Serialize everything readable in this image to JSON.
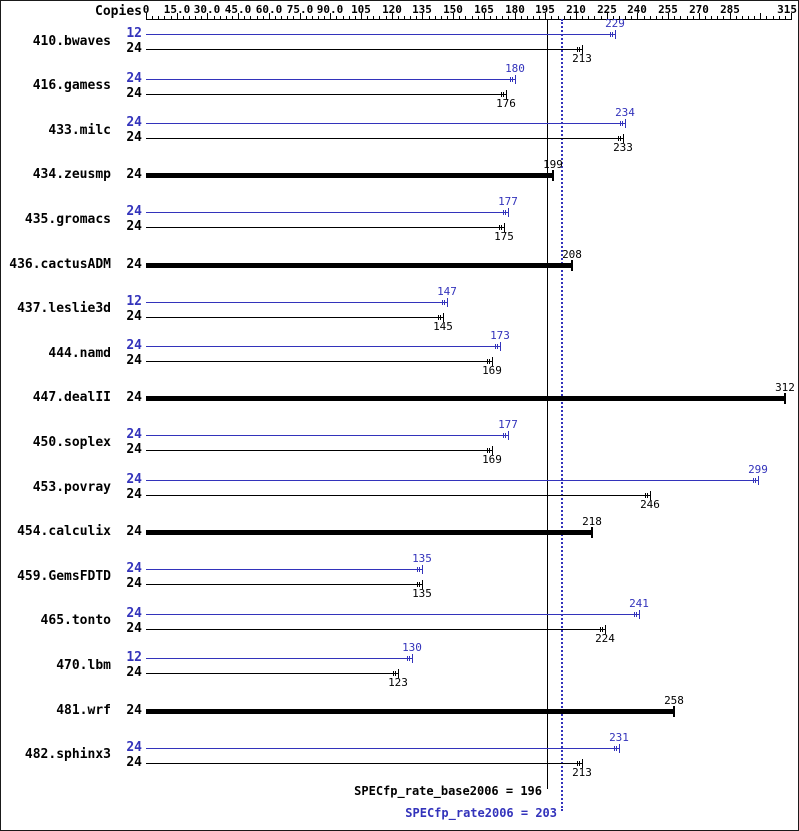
{
  "chart_data": {
    "type": "bar",
    "orientation": "horizontal",
    "copies_header": "Copies",
    "axis": {
      "max": 315,
      "minor_step": 3,
      "major_step": 15,
      "ticks": [
        {
          "value": 0,
          "text": "0"
        },
        {
          "value": 15,
          "text": "15.0"
        },
        {
          "value": 30,
          "text": "30.0"
        },
        {
          "value": 45,
          "text": "45.0"
        },
        {
          "value": 60,
          "text": "60.0"
        },
        {
          "value": 75,
          "text": "75.0"
        },
        {
          "value": 90,
          "text": "90.0"
        },
        {
          "value": 105,
          "text": "105"
        },
        {
          "value": 120,
          "text": "120"
        },
        {
          "value": 135,
          "text": "135"
        },
        {
          "value": 150,
          "text": "150"
        },
        {
          "value": 165,
          "text": "165"
        },
        {
          "value": 180,
          "text": "180"
        },
        {
          "value": 195,
          "text": "195"
        },
        {
          "value": 210,
          "text": "210"
        },
        {
          "value": 225,
          "text": "225"
        },
        {
          "value": 240,
          "text": "240"
        },
        {
          "value": 255,
          "text": "255"
        },
        {
          "value": 270,
          "text": "270"
        },
        {
          "value": 285,
          "text": "285"
        },
        {
          "value": 315,
          "text": "315"
        }
      ]
    },
    "colors": {
      "base": "#000000",
      "peak": "#3333bb"
    },
    "benchmarks": [
      {
        "name": "410.bwaves",
        "bars": [
          {
            "copies": "12",
            "series": "peak",
            "value": 229
          },
          {
            "copies": "24",
            "series": "base",
            "value": 213
          }
        ]
      },
      {
        "name": "416.gamess",
        "bars": [
          {
            "copies": "24",
            "series": "peak",
            "value": 180
          },
          {
            "copies": "24",
            "series": "base",
            "value": 176
          }
        ]
      },
      {
        "name": "433.milc",
        "bars": [
          {
            "copies": "24",
            "series": "peak",
            "value": 234
          },
          {
            "copies": "24",
            "series": "base",
            "value": 233
          }
        ]
      },
      {
        "name": "434.zeusmp",
        "bars": [
          {
            "copies": "24",
            "series": "base_only",
            "value": 199
          }
        ]
      },
      {
        "name": "435.gromacs",
        "bars": [
          {
            "copies": "24",
            "series": "peak",
            "value": 177
          },
          {
            "copies": "24",
            "series": "base",
            "value": 175
          }
        ]
      },
      {
        "name": "436.cactusADM",
        "bars": [
          {
            "copies": "24",
            "series": "base_only",
            "value": 208
          }
        ]
      },
      {
        "name": "437.leslie3d",
        "bars": [
          {
            "copies": "12",
            "series": "peak",
            "value": 147
          },
          {
            "copies": "24",
            "series": "base",
            "value": 145
          }
        ]
      },
      {
        "name": "444.namd",
        "bars": [
          {
            "copies": "24",
            "series": "peak",
            "value": 173
          },
          {
            "copies": "24",
            "series": "base",
            "value": 169
          }
        ]
      },
      {
        "name": "447.dealII",
        "bars": [
          {
            "copies": "24",
            "series": "base_only",
            "value": 312
          }
        ]
      },
      {
        "name": "450.soplex",
        "bars": [
          {
            "copies": "24",
            "series": "peak",
            "value": 177
          },
          {
            "copies": "24",
            "series": "base",
            "value": 169
          }
        ]
      },
      {
        "name": "453.povray",
        "bars": [
          {
            "copies": "24",
            "series": "peak",
            "value": 299
          },
          {
            "copies": "24",
            "series": "base",
            "value": 246
          }
        ]
      },
      {
        "name": "454.calculix",
        "bars": [
          {
            "copies": "24",
            "series": "base_only",
            "value": 218
          }
        ]
      },
      {
        "name": "459.GemsFDTD",
        "bars": [
          {
            "copies": "24",
            "series": "peak",
            "value": 135
          },
          {
            "copies": "24",
            "series": "base",
            "value": 135
          }
        ]
      },
      {
        "name": "465.tonto",
        "bars": [
          {
            "copies": "24",
            "series": "peak",
            "value": 241
          },
          {
            "copies": "24",
            "series": "base",
            "value": 224
          }
        ]
      },
      {
        "name": "470.lbm",
        "bars": [
          {
            "copies": "12",
            "series": "peak",
            "value": 130
          },
          {
            "copies": "24",
            "series": "base",
            "value": 123
          }
        ]
      },
      {
        "name": "481.wrf",
        "bars": [
          {
            "copies": "24",
            "series": "base_only",
            "value": 258
          }
        ]
      },
      {
        "name": "482.sphinx3",
        "bars": [
          {
            "copies": "24",
            "series": "peak",
            "value": 231
          },
          {
            "copies": "24",
            "series": "base",
            "value": 213
          }
        ]
      }
    ],
    "reference_lines": [
      {
        "label": "SPECfp_rate_base2006 = 196",
        "value": 196,
        "style": "solid",
        "color": "#000000"
      },
      {
        "label": "SPECfp_rate2006 = 203",
        "value": 203,
        "style": "dotted",
        "color": "#3333bb"
      }
    ]
  }
}
